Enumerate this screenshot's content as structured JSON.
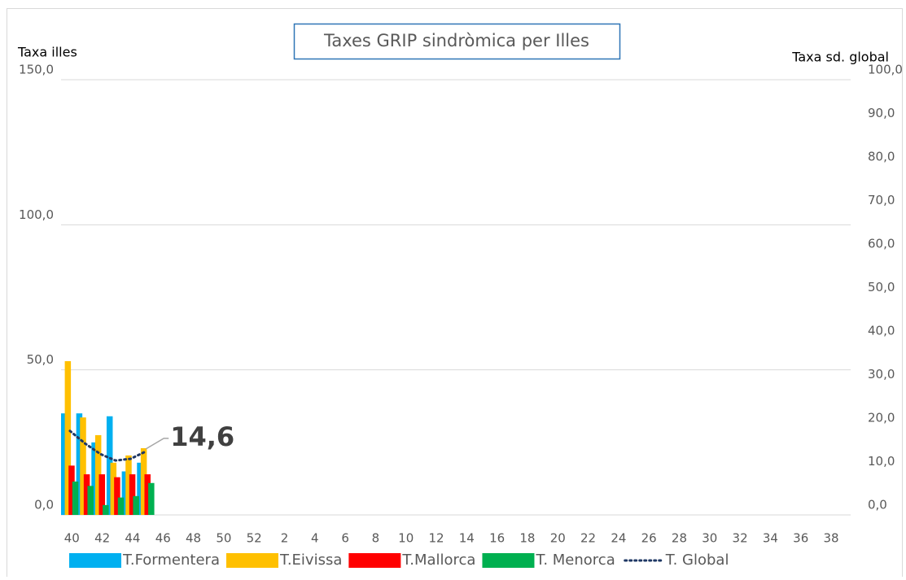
{
  "chart_data": {
    "type": "bar",
    "title": "Taxes GRIP sindròmica per Illes",
    "ylabel": "Taxa illes",
    "y2label": "Taxa sd. global",
    "categories": [
      40,
      null,
      42,
      null,
      44,
      null,
      46,
      null,
      48,
      null,
      50,
      null,
      52,
      null,
      2,
      null,
      4,
      null,
      6,
      null,
      8,
      null,
      10,
      null,
      12,
      null,
      14,
      null,
      16,
      null,
      18,
      null,
      20,
      null,
      22,
      null,
      24,
      null,
      26,
      null,
      28,
      null,
      30,
      null,
      32,
      null,
      34,
      null,
      36,
      null,
      38,
      null
    ],
    "ylim": [
      0,
      150
    ],
    "yticks": [
      {
        "value": 0,
        "label": "0,0"
      },
      {
        "value": 50,
        "label": "50,0"
      },
      {
        "value": 100,
        "label": "100,0"
      },
      {
        "value": 150,
        "label": "150,0"
      }
    ],
    "y2lim": [
      0,
      100
    ],
    "y2ticks": [
      {
        "value": 0,
        "label": "0,0"
      },
      {
        "value": 10,
        "label": "10,0"
      },
      {
        "value": 20,
        "label": "20,0"
      },
      {
        "value": 30,
        "label": "30,0"
      },
      {
        "value": 40,
        "label": "40,0"
      },
      {
        "value": 50,
        "label": "50,0"
      },
      {
        "value": 60,
        "label": "60,0"
      },
      {
        "value": 70,
        "label": "70,0"
      },
      {
        "value": 80,
        "label": "80,0"
      },
      {
        "value": 90,
        "label": "90,0"
      },
      {
        "value": 100,
        "label": "100,0"
      }
    ],
    "grid": true,
    "legend": "bottom",
    "series": [
      {
        "name": "T.Formentera",
        "color": "#00b0f0",
        "type": "bar",
        "values": [
          35,
          35,
          25,
          34,
          15,
          18,
          null,
          null,
          null,
          null,
          null,
          null,
          null,
          null,
          null,
          null,
          null,
          null,
          null,
          null,
          null,
          null,
          null,
          null,
          null,
          null,
          null,
          null,
          null,
          null,
          null,
          null,
          null,
          null,
          null,
          null,
          null,
          null,
          null,
          null,
          null,
          null,
          null,
          null,
          null,
          null,
          null,
          null,
          null,
          null,
          null,
          null
        ]
      },
      {
        "name": "T.Eivissa",
        "color": "#ffc000",
        "type": "bar",
        "values": [
          53,
          33.6,
          27.5,
          18,
          20.5,
          23,
          null,
          null,
          null,
          null,
          null,
          null,
          null,
          null,
          null,
          null,
          null,
          null,
          null,
          null,
          null,
          null,
          null,
          null,
          null,
          null,
          null,
          null,
          null,
          null,
          null,
          null,
          null,
          null,
          null,
          null,
          null,
          null,
          null,
          null,
          null,
          null,
          null,
          null,
          null,
          null,
          null,
          null,
          null,
          null,
          null,
          null
        ]
      },
      {
        "name": "T.Mallorca",
        "color": "#ff0000",
        "type": "bar",
        "values": [
          17,
          14,
          14,
          13,
          14,
          14,
          null,
          null,
          null,
          null,
          null,
          null,
          null,
          null,
          null,
          null,
          null,
          null,
          null,
          null,
          null,
          null,
          null,
          null,
          null,
          null,
          null,
          null,
          null,
          null,
          null,
          null,
          null,
          null,
          null,
          null,
          null,
          null,
          null,
          null,
          null,
          null,
          null,
          null,
          null,
          null,
          null,
          null,
          null,
          null,
          null,
          null
        ]
      },
      {
        "name": "T. Menorca",
        "color": "#00b050",
        "type": "bar",
        "values": [
          11.5,
          10,
          3.4,
          6,
          6.5,
          11,
          null,
          null,
          null,
          null,
          null,
          null,
          null,
          null,
          null,
          null,
          null,
          null,
          null,
          null,
          null,
          null,
          null,
          null,
          null,
          null,
          null,
          null,
          null,
          null,
          null,
          null,
          null,
          null,
          null,
          null,
          null,
          null,
          null,
          null,
          null,
          null,
          null,
          null,
          null,
          null,
          null,
          null,
          null,
          null,
          null,
          null
        ]
      },
      {
        "name": "T. Global",
        "color": "#1f3864",
        "type": "line",
        "axis": "y2",
        "values": [
          19.3,
          16.4,
          14,
          12.5,
          12.9,
          14.6,
          null,
          null,
          null,
          null,
          null,
          null,
          null,
          null,
          null,
          null,
          null,
          null,
          null,
          null,
          null,
          null,
          null,
          null,
          null,
          null,
          null,
          null,
          null,
          null,
          null,
          null,
          null,
          null,
          null,
          null,
          null,
          null,
          null,
          null,
          null,
          null,
          null,
          null,
          null,
          null,
          null,
          null,
          null,
          null,
          null,
          null
        ],
        "value_labels": [
          null,
          null,
          null,
          null,
          null,
          "14,6",
          null,
          null,
          null,
          null,
          null,
          null,
          null,
          null,
          null,
          null,
          null,
          null,
          null,
          null,
          null,
          null,
          null,
          null,
          null,
          null,
          null,
          null,
          null,
          null,
          null,
          null,
          null,
          null,
          null,
          null,
          null,
          null,
          null,
          null,
          null,
          null,
          null,
          null,
          null,
          null,
          null,
          null,
          null,
          null,
          null,
          null
        ]
      }
    ]
  }
}
